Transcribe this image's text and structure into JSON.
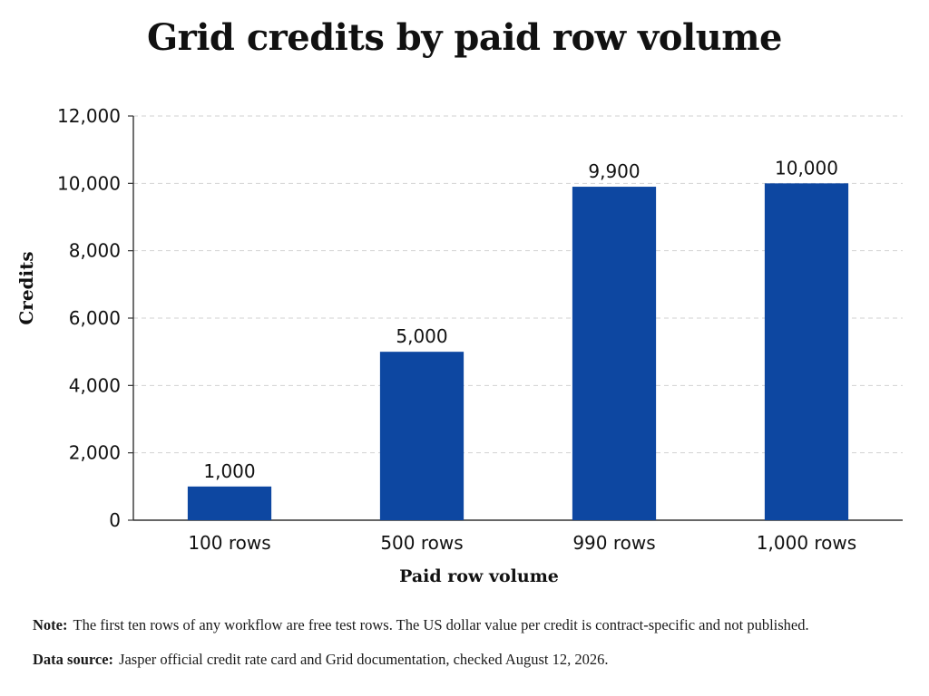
{
  "chart_data": {
    "type": "bar",
    "title": "Grid credits by paid row volume",
    "xlabel": "Paid row volume",
    "ylabel": "Credits",
    "categories": [
      "100 rows",
      "500 rows",
      "990 rows",
      "1,000 rows"
    ],
    "values": [
      1000,
      5000,
      9900,
      10000
    ],
    "value_labels": [
      "1,000",
      "5,000",
      "9,900",
      "10,000"
    ],
    "ylim": [
      0,
      12000
    ],
    "yticks": [
      0,
      2000,
      4000,
      6000,
      8000,
      10000,
      12000
    ],
    "ytick_labels": [
      "0",
      "2,000",
      "4,000",
      "6,000",
      "8,000",
      "10,000",
      "12,000"
    ],
    "grid": "horizontal-dashed",
    "legend": "none",
    "bar_color": "#0d47a1"
  },
  "notes": {
    "note_label": "Note:",
    "note_text": "The first ten rows of any workflow are free test rows. The US dollar value per credit is contract-specific and not published.",
    "source_label": "Data source:",
    "source_text": "Jasper official credit rate card and Grid documentation, checked August 12, 2026."
  }
}
